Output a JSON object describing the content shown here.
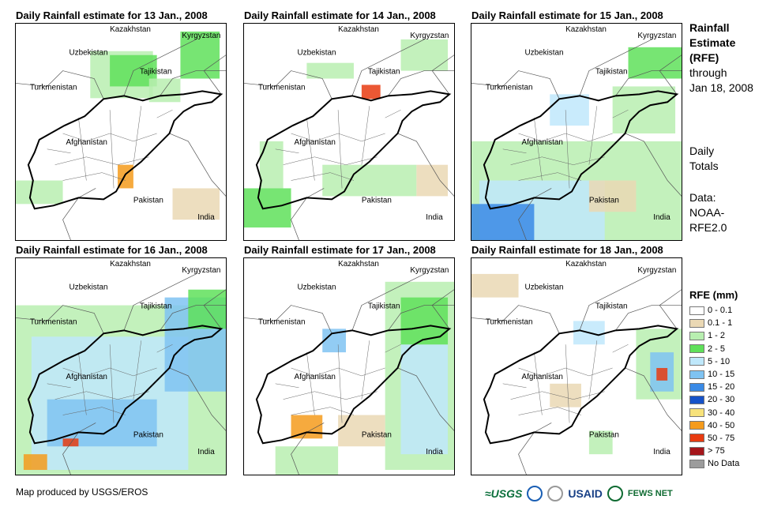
{
  "panels": [
    {
      "title": "Daily Rainfall estimate for 13 Jan., 2008"
    },
    {
      "title": "Daily Rainfall estimate for 14 Jan., 2008"
    },
    {
      "title": "Daily Rainfall estimate for 15 Jan., 2008"
    },
    {
      "title": "Daily Rainfall estimate for 16 Jan., 2008"
    },
    {
      "title": "Daily Rainfall estimate for 17 Jan., 2008"
    },
    {
      "title": "Daily Rainfall estimate for 18 Jan., 2008"
    }
  ],
  "labels": {
    "kazakhstan": "Kazakhstan",
    "kyrgyzstan": "Kyrgyzstan",
    "uzbekistan": "Uzbekistan",
    "tajikistan": "Tajikistan",
    "turkmenistan": "Turkmenistan",
    "afghanistan": "Afghanistan",
    "pakistan": "Pakistan",
    "india": "India"
  },
  "side": {
    "title_line1": "Rainfall",
    "title_line2": "Estimate",
    "title_line3": "(RFE)",
    "through": "through",
    "date": "Jan 18, 2008",
    "daily1": "Daily",
    "daily2": "Totals",
    "data1": "Data:",
    "data2": "NOAA-",
    "data3": "RFE2.0"
  },
  "legend": {
    "title": "RFE (mm)",
    "items": [
      {
        "label": "0 - 0.1",
        "color": "#ffffff"
      },
      {
        "label": "0.1 - 1",
        "color": "#ead8b4"
      },
      {
        "label": "1 - 2",
        "color": "#b8efb0"
      },
      {
        "label": "2 - 5",
        "color": "#5fe05a"
      },
      {
        "label": "5 - 10",
        "color": "#bfe8fb"
      },
      {
        "label": "10 - 15",
        "color": "#7fc3f2"
      },
      {
        "label": "15 - 20",
        "color": "#3a8ae6"
      },
      {
        "label": "20 - 30",
        "color": "#1652c8"
      },
      {
        "label": "30 - 40",
        "color": "#f7e27b"
      },
      {
        "label": "40 - 50",
        "color": "#f59b1c"
      },
      {
        "label": "50 - 75",
        "color": "#e83b10"
      },
      {
        "label": "> 75",
        "color": "#a5161b"
      },
      {
        "label": "No Data",
        "color": "#9c9c9c"
      }
    ]
  },
  "credit": "Map produced by USGS/EROS",
  "logos": {
    "usgs": "≈USGS",
    "usaid": "USAID",
    "fews": "FEWS NET"
  }
}
